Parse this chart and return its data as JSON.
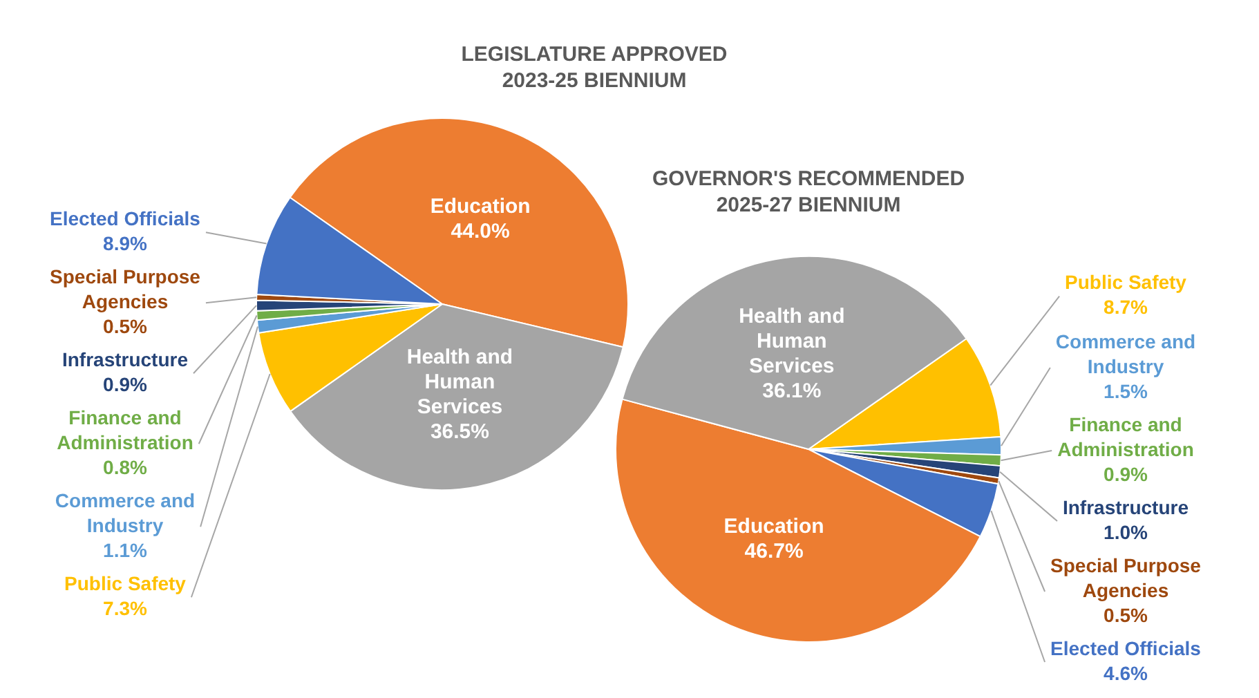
{
  "chart_data": [
    {
      "type": "pie",
      "title": "LEGISLATURE APPROVED 2023-25 BIENNIUM",
      "categories": [
        "Education",
        "Health and Human Services",
        "Public Safety",
        "Commerce and Industry",
        "Finance and Administration",
        "Infrastructure",
        "Special Purpose Agencies",
        "Elected Officials"
      ],
      "values": [
        44.0,
        36.5,
        7.3,
        1.1,
        0.8,
        0.9,
        0.5,
        8.9
      ],
      "colors": [
        "#ed7d31",
        "#a5a5a5",
        "#ffc000",
        "#5b9bd5",
        "#70ad47",
        "#264478",
        "#9e480e",
        "#4472c4"
      ],
      "value_labels": [
        "44.0%",
        "36.5%",
        "7.3%",
        "1.1%",
        "0.8%",
        "0.9%",
        "0.5%",
        "8.9%"
      ]
    },
    {
      "type": "pie",
      "title": "GOVERNOR'S RECOMMENDED 2025-27 BIENNIUM",
      "categories": [
        "Public Safety",
        "Commerce and Industry",
        "Finance and Administration",
        "Infrastructure",
        "Special Purpose Agencies",
        "Elected Officials",
        "Education",
        "Health and Human Services"
      ],
      "values": [
        8.7,
        1.5,
        0.9,
        1.0,
        0.5,
        4.6,
        46.7,
        36.1
      ],
      "colors": [
        "#ffc000",
        "#5b9bd5",
        "#70ad47",
        "#264478",
        "#9e480e",
        "#4472c4",
        "#ed7d31",
        "#a5a5a5"
      ],
      "value_labels": [
        "8.7%",
        "1.5%",
        "0.9%",
        "1.0%",
        "0.5%",
        "4.6%",
        "46.7%",
        "36.1%"
      ]
    }
  ]
}
